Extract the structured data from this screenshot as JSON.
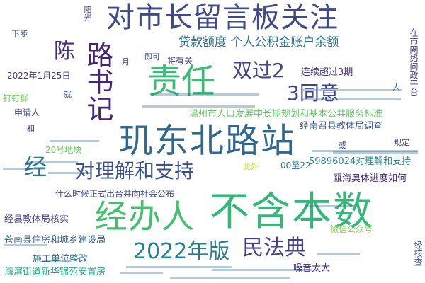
{
  "words": [
    {
      "id": "w01",
      "text": "对市长留言板关注",
      "color": "#3e4a89"
    },
    {
      "id": "w02",
      "text": "不含本数",
      "color": "#35b779"
    },
    {
      "id": "w03",
      "text": "玑东北路站",
      "color": "#31688e"
    },
    {
      "id": "w04",
      "text": "经办人",
      "color": "#44bf70"
    },
    {
      "id": "w05",
      "text": "责任",
      "color": "#3bbb75"
    },
    {
      "id": "w06",
      "text": "路书记",
      "color": "#482475"
    },
    {
      "id": "w07",
      "text": "对理解和支持",
      "color": "#3b528b"
    },
    {
      "id": "w08",
      "text": "2022年版",
      "color": "#287d8e"
    },
    {
      "id": "w09",
      "text": "民法典",
      "color": "#404387"
    },
    {
      "id": "w10",
      "text": "双过2",
      "color": "#3f4889"
    },
    {
      "id": "w11",
      "text": "3同意",
      "color": "#414487"
    },
    {
      "id": "w12",
      "text": "陈",
      "color": "#472c7a"
    },
    {
      "id": "w13",
      "text": "经",
      "color": "#2a788e"
    },
    {
      "id": "w14",
      "text": "贷款额度 个人公积金账户余额",
      "color": "#2c728e"
    },
    {
      "id": "w15",
      "text": "温州市人口发展中长期规划和基本公共服务标准",
      "color": "#5ec962"
    },
    {
      "id": "w16",
      "text": "连续超过3期",
      "color": "#46317e"
    },
    {
      "id": "w17",
      "text": "经南召县教体局调查",
      "color": "#3a548c"
    },
    {
      "id": "w18",
      "text": "59896024对理解和支持",
      "color": "#25848e"
    },
    {
      "id": "w19",
      "text": "瓯海奥体进度如何",
      "color": "#482979"
    },
    {
      "id": "w20",
      "text": "什么时候正式出台并向社会公布",
      "color": "#3e4c8a"
    },
    {
      "id": "w21",
      "text": "经县教体局核实",
      "color": "#433e85"
    },
    {
      "id": "w22",
      "text": "苍南县住房和城乡建设局",
      "color": "#355f8d"
    },
    {
      "id": "w23",
      "text": "施工单位整改",
      "color": "#2d708e"
    },
    {
      "id": "w24",
      "text": "海滨街道新华锦苑安置房",
      "color": "#22a884"
    },
    {
      "id": "w25",
      "text": "噪音太大",
      "color": "#472a7a"
    },
    {
      "id": "w26",
      "text": "微信公众号",
      "color": "#7ad151"
    },
    {
      "id": "w27",
      "text": "2022年1月25日",
      "color": "#453781"
    },
    {
      "id": "w28",
      "text": "钉钉群",
      "color": "#75d054"
    },
    {
      "id": "w29",
      "text": "申请人",
      "color": "#3e4989"
    },
    {
      "id": "w30",
      "text": "20号地块",
      "color": "#63cb5f"
    },
    {
      "id": "w31",
      "text": "00至22",
      "color": "#2a768e"
    },
    {
      "id": "w32",
      "text": "将有关",
      "color": "#453882"
    },
    {
      "id": "w33",
      "text": "即可",
      "color": "#3b518b"
    },
    {
      "id": "w34",
      "text": "下步",
      "color": "#3b528b"
    },
    {
      "id": "w35",
      "text": "阳光",
      "color": "#46337e"
    },
    {
      "id": "w36",
      "text": "月",
      "color": "#424086"
    },
    {
      "id": "w37",
      "text": "规定",
      "color": "#3f4788"
    },
    {
      "id": "w38",
      "text": "或",
      "color": "#3e4a89"
    },
    {
      "id": "w39",
      "text": "和",
      "color": "#482173"
    },
    {
      "id": "w40",
      "text": "就",
      "color": "#3b528b"
    },
    {
      "id": "w41",
      "text": "人",
      "color": "#2a788e"
    },
    {
      "id": "w42",
      "text": "此外",
      "color": "#c8e020"
    },
    {
      "id": "w43",
      "text": "在市网络问政平台",
      "color": "#453882"
    },
    {
      "id": "w44",
      "text": "经核查",
      "color": "#3d4d8a"
    }
  ],
  "minor_text_color": "#31688e"
}
